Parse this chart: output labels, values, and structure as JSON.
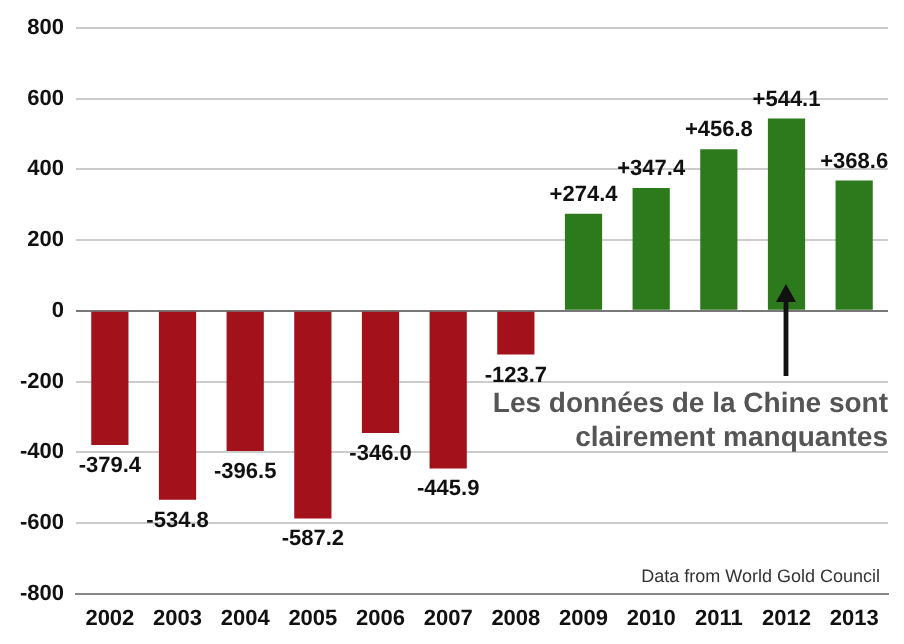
{
  "chart_data": {
    "type": "bar",
    "categories": [
      "2002",
      "2003",
      "2004",
      "2005",
      "2006",
      "2007",
      "2008",
      "2009",
      "2010",
      "2011",
      "2012",
      "2013"
    ],
    "values": [
      -379.4,
      -534.8,
      -396.5,
      -587.2,
      -346.0,
      -445.9,
      -123.7,
      274.4,
      347.4,
      456.8,
      544.1,
      368.6
    ],
    "colors": [
      "#a3111a",
      "#a3111a",
      "#a3111a",
      "#a3111a",
      "#a3111a",
      "#a3111a",
      "#a3111a",
      "#2c7a1c",
      "#2c7a1c",
      "#2c7a1c",
      "#2c7a1c",
      "#2c7a1c"
    ],
    "value_labels": [
      "-379.4",
      "-534.8",
      "-396.5",
      "-587.2",
      "-346.0",
      "-445.9",
      "-123.7",
      "+274.4",
      "+347.4",
      "+456.8",
      "+544.1",
      "+368.6"
    ],
    "ylim": [
      -800,
      800
    ],
    "yticks": [
      -800,
      -600,
      -400,
      -200,
      0,
      200,
      400,
      600,
      800
    ],
    "grid": "y",
    "annotations": [
      {
        "text": "Les données de la Chine sont clairement manquantes",
        "x": "2012",
        "y": 0
      },
      "Data from World Gold Council"
    ]
  }
}
